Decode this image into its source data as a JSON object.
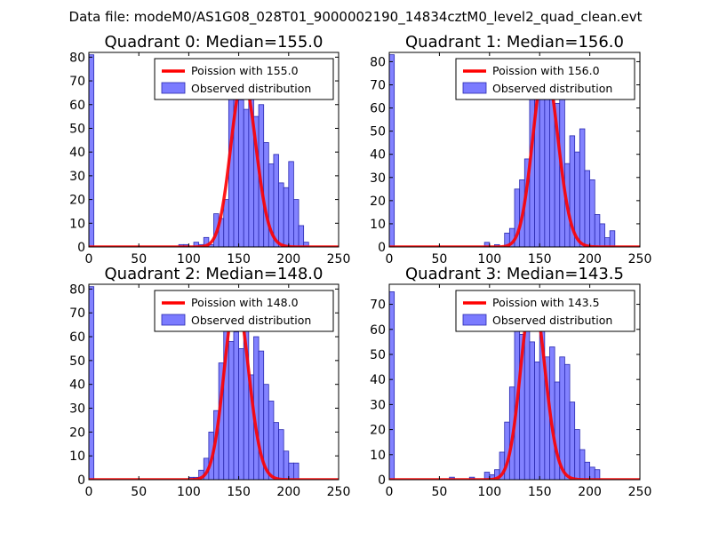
{
  "figure_title": "Data file: modeM0/AS1G08_028T01_9000002190_14834cztM0_level2_quad_clean.evt",
  "colors": {
    "hist_fill": "#7b7bff",
    "hist_edge": "#2a2ab0",
    "poisson_line": "#ff0000",
    "axes": "#000000"
  },
  "chart_data": [
    {
      "type": "bar",
      "title": "Quadrant 0: Median=155.0",
      "median": 155.0,
      "xlim": [
        0,
        250
      ],
      "ylim": [
        0,
        82
      ],
      "xticks": [
        0,
        50,
        100,
        150,
        200,
        250
      ],
      "yticks": [
        0,
        10,
        20,
        30,
        40,
        50,
        60,
        70,
        80
      ],
      "bin_width": 5,
      "legend": [
        "Poission with 155.0",
        "Observed distribution"
      ],
      "legend_position": "top-right",
      "series": [
        {
          "name": "Observed distribution",
          "type": "histogram",
          "bins": [
            [
              0,
              81
            ],
            [
              90,
              1
            ],
            [
              95,
              1
            ],
            [
              105,
              2
            ],
            [
              110,
              1
            ],
            [
              115,
              4
            ],
            [
              120,
              1
            ],
            [
              125,
              14
            ],
            [
              130,
              12
            ],
            [
              135,
              20
            ],
            [
              140,
              66
            ],
            [
              145,
              71
            ],
            [
              150,
              62
            ],
            [
              155,
              58
            ],
            [
              160,
              70
            ],
            [
              165,
              55
            ],
            [
              170,
              60
            ],
            [
              175,
              44
            ],
            [
              180,
              35
            ],
            [
              185,
              39
            ],
            [
              190,
              27
            ],
            [
              195,
              25
            ],
            [
              200,
              36
            ],
            [
              205,
              20
            ],
            [
              210,
              9
            ],
            [
              215,
              2
            ]
          ]
        },
        {
          "name": "Poission with 155.0",
          "type": "poisson",
          "lambda": 155.0
        }
      ]
    },
    {
      "type": "bar",
      "title": "Quadrant 1: Median=156.0",
      "median": 156.0,
      "xlim": [
        0,
        250
      ],
      "ylim": [
        0,
        84
      ],
      "xticks": [
        0,
        50,
        100,
        150,
        200,
        250
      ],
      "yticks": [
        0,
        10,
        20,
        30,
        40,
        50,
        60,
        70,
        80
      ],
      "bin_width": 5,
      "legend": [
        "Poission with 156.0",
        "Observed distribution"
      ],
      "legend_position": "top-right",
      "series": [
        {
          "name": "Observed distribution",
          "type": "histogram",
          "bins": [
            [
              0,
              83
            ],
            [
              95,
              2
            ],
            [
              105,
              1
            ],
            [
              115,
              6
            ],
            [
              120,
              8
            ],
            [
              125,
              25
            ],
            [
              130,
              29
            ],
            [
              135,
              38
            ],
            [
              140,
              66
            ],
            [
              145,
              73
            ],
            [
              150,
              77
            ],
            [
              155,
              76
            ],
            [
              160,
              64
            ],
            [
              165,
              62
            ],
            [
              170,
              78
            ],
            [
              175,
              36
            ],
            [
              180,
              48
            ],
            [
              185,
              41
            ],
            [
              190,
              51
            ],
            [
              195,
              33
            ],
            [
              200,
              29
            ],
            [
              205,
              14
            ],
            [
              210,
              10
            ],
            [
              215,
              4
            ],
            [
              220,
              7
            ]
          ]
        },
        {
          "name": "Poission with 156.0",
          "type": "poisson",
          "lambda": 156.0
        }
      ]
    },
    {
      "type": "bar",
      "title": "Quadrant 2: Median=148.0",
      "median": 148.0,
      "xlim": [
        0,
        250
      ],
      "ylim": [
        0,
        82
      ],
      "xticks": [
        0,
        50,
        100,
        150,
        200,
        250
      ],
      "yticks": [
        0,
        10,
        20,
        30,
        40,
        50,
        60,
        70,
        80
      ],
      "bin_width": 5,
      "legend": [
        "Poission with 148.0",
        "Observed distribution"
      ],
      "legend_position": "top-right",
      "series": [
        {
          "name": "Observed distribution",
          "type": "histogram",
          "bins": [
            [
              0,
              81
            ],
            [
              100,
              1
            ],
            [
              105,
              1
            ],
            [
              110,
              4
            ],
            [
              115,
              9
            ],
            [
              120,
              20
            ],
            [
              125,
              29
            ],
            [
              130,
              49
            ],
            [
              135,
              64
            ],
            [
              140,
              58
            ],
            [
              145,
              62
            ],
            [
              150,
              55
            ],
            [
              155,
              76
            ],
            [
              160,
              44
            ],
            [
              165,
              60
            ],
            [
              170,
              54
            ],
            [
              175,
              40
            ],
            [
              180,
              33
            ],
            [
              185,
              24
            ],
            [
              190,
              21
            ],
            [
              195,
              12
            ],
            [
              200,
              7
            ],
            [
              205,
              7
            ]
          ]
        },
        {
          "name": "Poission with 148.0",
          "type": "poisson",
          "lambda": 148.0
        }
      ]
    },
    {
      "type": "bar",
      "title": "Quadrant 3: Median=143.5",
      "median": 143.5,
      "xlim": [
        0,
        250
      ],
      "ylim": [
        0,
        78
      ],
      "xticks": [
        0,
        50,
        100,
        150,
        200,
        250
      ],
      "yticks": [
        0,
        10,
        20,
        30,
        40,
        50,
        60,
        70
      ],
      "bin_width": 5,
      "legend": [
        "Poission with 143.5",
        "Observed distribution"
      ],
      "legend_position": "top-right",
      "series": [
        {
          "name": "Observed distribution",
          "type": "histogram",
          "bins": [
            [
              0,
              75
            ],
            [
              60,
              1
            ],
            [
              80,
              1
            ],
            [
              95,
              3
            ],
            [
              100,
              2
            ],
            [
              105,
              4
            ],
            [
              110,
              11
            ],
            [
              115,
              23
            ],
            [
              120,
              37
            ],
            [
              125,
              60
            ],
            [
              130,
              58
            ],
            [
              135,
              74
            ],
            [
              140,
              55
            ],
            [
              145,
              47
            ],
            [
              150,
              63
            ],
            [
              155,
              49
            ],
            [
              160,
              53
            ],
            [
              165,
              39
            ],
            [
              170,
              49
            ],
            [
              175,
              46
            ],
            [
              180,
              31
            ],
            [
              185,
              20
            ],
            [
              190,
              12
            ],
            [
              195,
              7
            ],
            [
              200,
              5
            ],
            [
              205,
              4
            ]
          ]
        },
        {
          "name": "Poission with 143.5",
          "type": "poisson",
          "lambda": 143.5
        }
      ]
    }
  ]
}
